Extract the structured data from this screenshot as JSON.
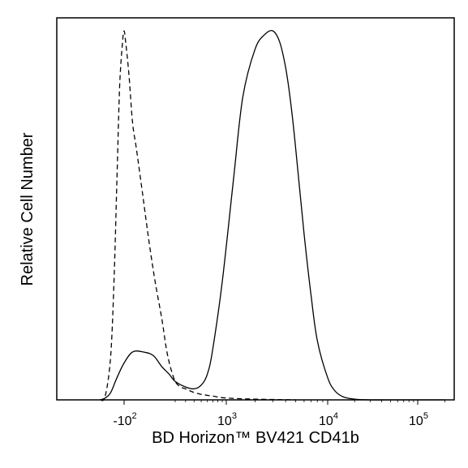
{
  "chart_data": {
    "type": "line",
    "title": "",
    "xlabel": "BD Horizon™ BV421 CD41b",
    "ylabel": "Relative Cell Number",
    "x_scale": "biexponential",
    "xlim": [
      -300,
      200000
    ],
    "ylim": [
      0,
      1
    ],
    "y_ticks_shown": false,
    "grid": false,
    "legend": "none",
    "x_ticks": [
      {
        "value": -100,
        "base": "-10",
        "exp": "2"
      },
      {
        "value": 1000,
        "base": "10",
        "exp": "3"
      },
      {
        "value": 10000,
        "base": "10",
        "exp": "4"
      },
      {
        "value": 100000,
        "base": "10",
        "exp": "5"
      }
    ],
    "series": [
      {
        "style": "solid",
        "color": "#000000",
        "x": [
          -300,
          -250,
          -200,
          -150,
          -100,
          -50,
          0,
          50,
          100,
          150,
          200,
          300,
          400,
          500,
          600,
          700,
          900,
          1200,
          1500,
          2000,
          2500,
          3000,
          3500,
          4000,
          4500,
          5000,
          6000,
          7000,
          8000,
          10000,
          12000,
          15000,
          20000,
          30000,
          50000,
          100000,
          200000
        ],
        "y": [
          0.0,
          0.005,
          0.02,
          0.06,
          0.1,
          0.13,
          0.13,
          0.12,
          0.09,
          0.07,
          0.05,
          0.035,
          0.03,
          0.04,
          0.07,
          0.14,
          0.32,
          0.6,
          0.82,
          0.95,
          0.99,
          1.0,
          0.97,
          0.9,
          0.8,
          0.68,
          0.45,
          0.28,
          0.16,
          0.06,
          0.025,
          0.008,
          0.002,
          0.0,
          0.0,
          0.0,
          0.0
        ]
      },
      {
        "style": "dashed",
        "color": "#000000",
        "x": [
          -300,
          -250,
          -200,
          -170,
          -150,
          -130,
          -110,
          -100,
          -90,
          -70,
          -50,
          -30,
          0,
          30,
          60,
          100,
          130,
          160,
          200,
          250,
          300,
          400,
          500,
          700,
          1000,
          2000,
          5000
        ],
        "y": [
          0.0,
          0.01,
          0.12,
          0.35,
          0.6,
          0.85,
          0.97,
          1.0,
          0.97,
          0.88,
          0.75,
          0.68,
          0.55,
          0.42,
          0.32,
          0.22,
          0.14,
          0.09,
          0.05,
          0.035,
          0.03,
          0.02,
          0.015,
          0.01,
          0.005,
          0.002,
          0.0
        ]
      }
    ]
  }
}
